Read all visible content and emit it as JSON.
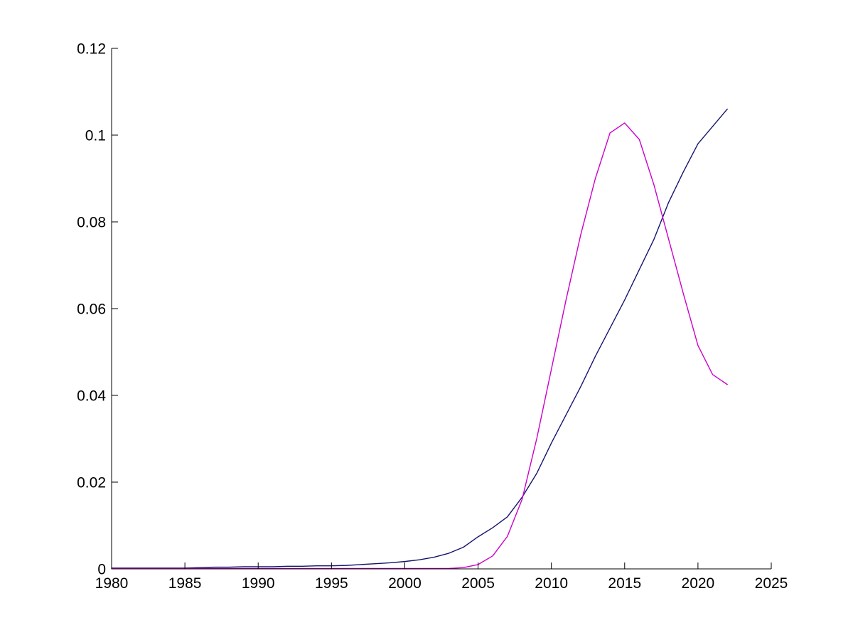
{
  "figure": {
    "background_color": "#ffffff",
    "axis_color": "#000000"
  },
  "chart_data": {
    "type": "line",
    "title": "",
    "xlabel": "",
    "ylabel": "",
    "xlim": [
      1980,
      2025
    ],
    "ylim": [
      0,
      0.12
    ],
    "grid": false,
    "legend": "none",
    "box": false,
    "x_ticks": {
      "values": [
        1980,
        1985,
        1990,
        1995,
        2000,
        2005,
        2010,
        2015,
        2020,
        2025
      ],
      "labels": [
        "1980",
        "1985",
        "1990",
        "1995",
        "2000",
        "2005",
        "2010",
        "2015",
        "2020",
        "2025"
      ]
    },
    "y_ticks": {
      "values": [
        0,
        0.02,
        0.04,
        0.06,
        0.08,
        0.1,
        0.12
      ],
      "labels": [
        "0",
        "0.02",
        "0.04",
        "0.06",
        "0.08",
        "0.1",
        "0.12"
      ]
    },
    "x": [
      1980,
      1981,
      1982,
      1983,
      1984,
      1985,
      1986,
      1987,
      1988,
      1989,
      1990,
      1991,
      1992,
      1993,
      1994,
      1995,
      1996,
      1997,
      1998,
      1999,
      2000,
      2001,
      2002,
      2003,
      2004,
      2005,
      2006,
      2007,
      2008,
      2009,
      2010,
      2011,
      2012,
      2013,
      2014,
      2015,
      2016,
      2017,
      2018,
      2019,
      2020,
      2021,
      2022
    ],
    "series": [
      {
        "name": "dark-blue-line",
        "color": "#14146E",
        "values": [
          0.0002,
          0.0002,
          0.0002,
          0.0002,
          0.0002,
          0.0002,
          0.0003,
          0.0004,
          0.0004,
          0.0005,
          0.0005,
          0.0005,
          0.0006,
          0.0006,
          0.0007,
          0.0007,
          0.0008,
          0.001,
          0.0012,
          0.0014,
          0.0017,
          0.0021,
          0.0027,
          0.0036,
          0.005,
          0.0074,
          0.0095,
          0.012,
          0.0165,
          0.022,
          0.029,
          0.0355,
          0.042,
          0.049,
          0.0555,
          0.062,
          0.069,
          0.076,
          0.0845,
          0.0915,
          0.098,
          0.102,
          0.106
        ]
      },
      {
        "name": "magenta-line",
        "color": "#CC00CC",
        "values": [
          0.0001,
          0.0001,
          0.0001,
          0.0001,
          0.0001,
          0.0001,
          0.0001,
          0.0001,
          0.0001,
          0.0001,
          0.0001,
          0.0001,
          0.0001,
          0.0001,
          0.0001,
          0.0001,
          0.0001,
          0.0001,
          0.0001,
          0.0001,
          0.0001,
          0.0001,
          0.0001,
          0.0001,
          0.0003,
          0.001,
          0.003,
          0.0075,
          0.016,
          0.03,
          0.046,
          0.062,
          0.077,
          0.09,
          0.1005,
          0.1028,
          0.099,
          0.0885,
          0.076,
          0.0635,
          0.0515,
          0.0448,
          0.0425
        ]
      }
    ]
  }
}
